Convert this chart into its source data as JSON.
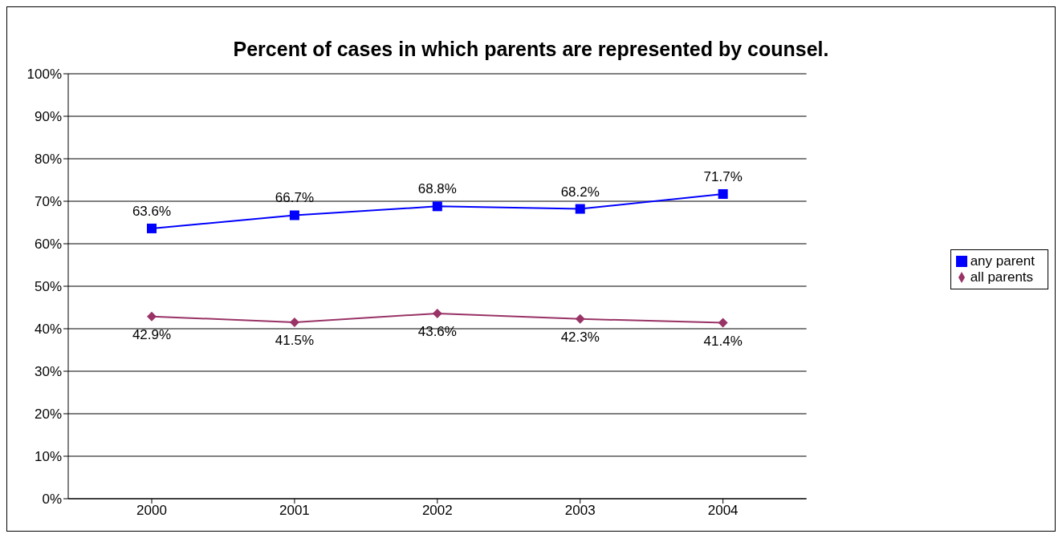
{
  "chart_data": {
    "type": "line",
    "title": "Percent of cases in which parents are represented by counsel.",
    "categories": [
      "2000",
      "2001",
      "2002",
      "2003",
      "2004"
    ],
    "series": [
      {
        "name": "any parent",
        "color": "#0000ff",
        "marker": "square",
        "values": [
          63.6,
          66.7,
          68.8,
          68.2,
          71.7
        ],
        "value_labels": [
          "63.6%",
          "66.7%",
          "68.8%",
          "68.2%",
          "71.7%"
        ]
      },
      {
        "name": "all parents",
        "color": "#993366",
        "marker": "diamond",
        "values": [
          42.9,
          41.5,
          43.6,
          42.3,
          41.4
        ],
        "value_labels": [
          "42.9%",
          "41.5%",
          "43.6%",
          "42.3%",
          "41.4%"
        ]
      }
    ],
    "ylim": [
      0,
      100
    ],
    "yticks": [
      {
        "value": 0,
        "label": "0%"
      },
      {
        "value": 10,
        "label": "10%"
      },
      {
        "value": 20,
        "label": "20%"
      },
      {
        "value": 30,
        "label": "30%"
      },
      {
        "value": 40,
        "label": "40%"
      },
      {
        "value": 50,
        "label": "50%"
      },
      {
        "value": 60,
        "label": "60%"
      },
      {
        "value": 70,
        "label": "70%"
      },
      {
        "value": 80,
        "label": "80%"
      },
      {
        "value": 90,
        "label": "90%"
      },
      {
        "value": 100,
        "label": "100%"
      }
    ],
    "grid": "y",
    "legend": "right",
    "line_style": "solid"
  }
}
